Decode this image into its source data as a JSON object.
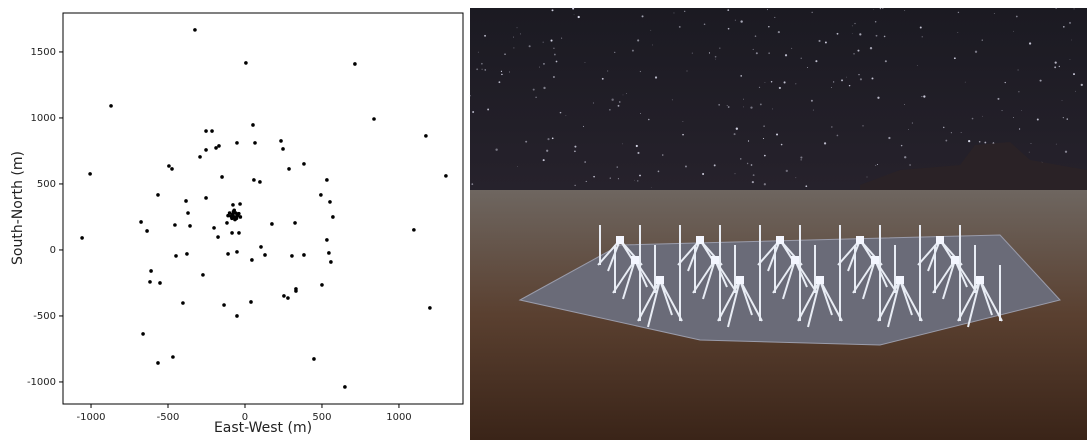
{
  "chart_data": {
    "type": "scatter",
    "x_label": "East-West (m)",
    "y_label": "South-North (m)",
    "color": "#000000",
    "xlim": [
      -1182,
      1416
    ],
    "ylim": [
      -1167,
      1795
    ],
    "xticks": [
      -1000,
      -500,
      0,
      500,
      1000
    ],
    "yticks": [
      -1000,
      -500,
      0,
      500,
      1000,
      1500
    ],
    "grid": false,
    "x": [
      -325,
      6,
      714,
      -870,
      -1006,
      -1058,
      838,
      1175,
      1305,
      1097,
      1201,
      649,
      448,
      -662,
      -565,
      -468,
      -52,
      -136,
      39,
      -403,
      253,
      279,
      331,
      331,
      500,
      -610,
      -617,
      -552,
      -448,
      -377,
      -273,
      -110,
      -52,
      45,
      104,
      130,
      305,
      383,
      558,
      545,
      532,
      -675,
      -636,
      -455,
      -357,
      -370,
      -383,
      -565,
      -253,
      -201,
      -175,
      -84,
      -39,
      -78,
      -32,
      175,
      325,
      552,
      571,
      493,
      532,
      383,
      286,
      234,
      247,
      52,
      65,
      -52,
      -149,
      58,
      97,
      -494,
      -474,
      -292,
      -253,
      -188,
      -169,
      -253,
      -214,
      -117,
      -80,
      -60,
      -70,
      -50,
      -90,
      -75,
      -55,
      -100,
      -40,
      -65,
      -85,
      -30,
      -110,
      -70
    ],
    "y": [
      1667,
      1417,
      1409,
      1091,
      576,
      91,
      992,
      864,
      561,
      152,
      -439,
      -1038,
      -826,
      -636,
      -856,
      -811,
      -500,
      -417,
      -394,
      -402,
      -348,
      -364,
      -311,
      -295,
      -265,
      -159,
      -242,
      -250,
      -45,
      -30,
      -189,
      -30,
      -15,
      -76,
      23,
      -38,
      -45,
      -38,
      -91,
      -23,
      76,
      212,
      144,
      189,
      182,
      280,
      371,
      417,
      394,
      167,
      98,
      129,
      129,
      341,
      348,
      197,
      205,
      364,
      250,
      417,
      530,
      652,
      614,
      826,
      765,
      947,
      811,
      811,
      553,
      530,
      515,
      636,
      614,
      705,
      758,
      773,
      788,
      901,
      901,
      205,
      270,
      280,
      250,
      260,
      255,
      290,
      240,
      280,
      275,
      230,
      240,
      250,
      260,
      300
    ]
  }
}
